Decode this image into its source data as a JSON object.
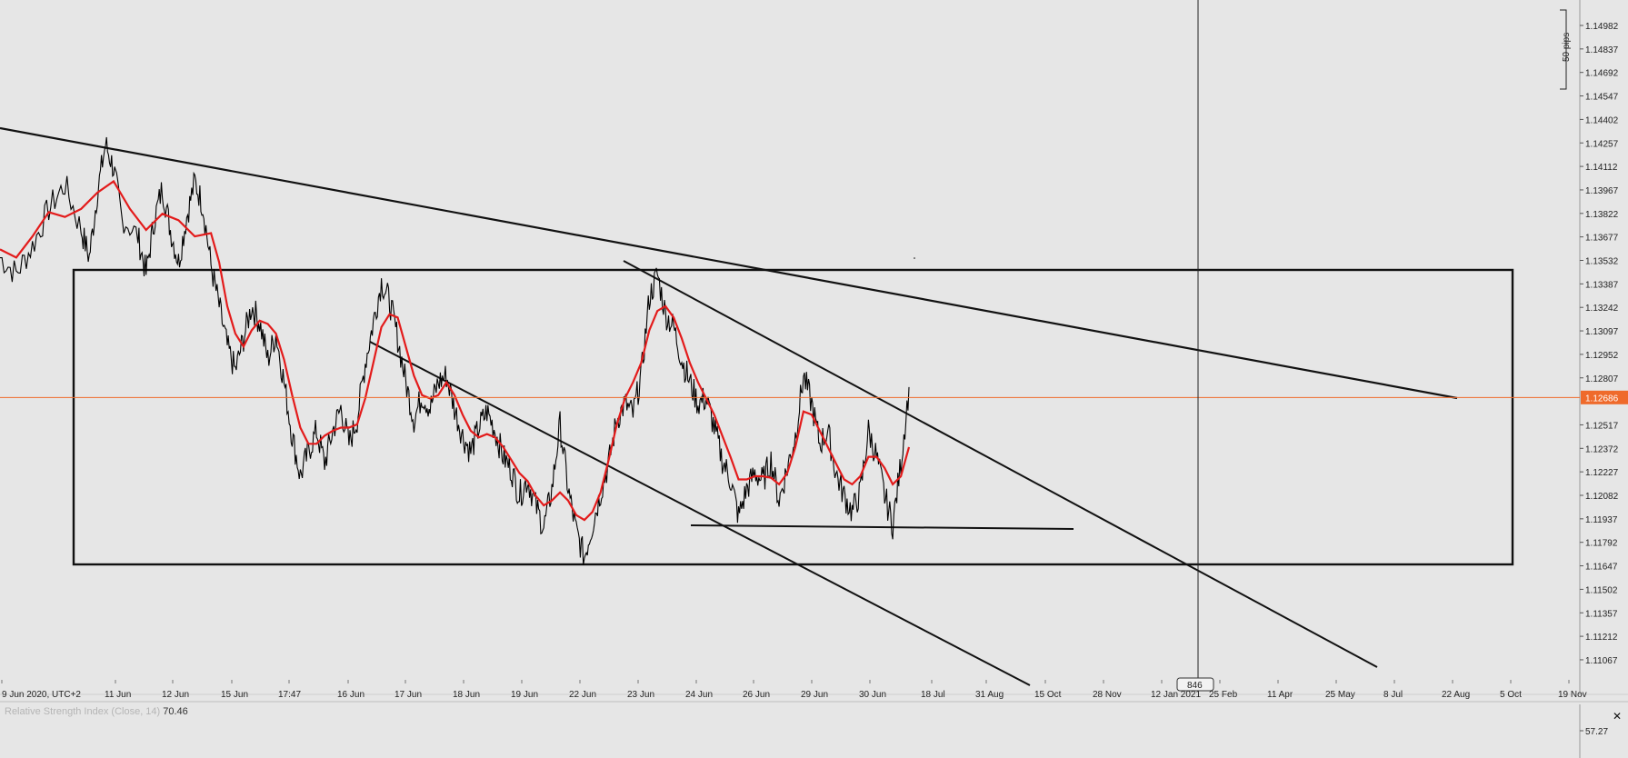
{
  "chart_data": {
    "type": "line",
    "title": "",
    "instrument_price_axis": {
      "ticks": [
        "1.14982",
        "1.14837",
        "1.14692",
        "1.14547",
        "1.14402",
        "1.14257",
        "1.14112",
        "1.13967",
        "1.13822",
        "1.13677",
        "1.13532",
        "1.13387",
        "1.13242",
        "1.13097",
        "1.12952",
        "1.12807",
        "1.12517",
        "1.12372",
        "1.12227",
        "1.12082",
        "1.11937",
        "1.11792",
        "1.11647",
        "1.11502",
        "1.11357",
        "1.11212",
        "1.11067"
      ],
      "ylim": [
        1.1095,
        1.1508
      ]
    },
    "current_price": "1.12686",
    "current_price_color": "#ef6a2b",
    "pips_label": "50 pips",
    "x_ticks": [
      "9 Jun 2020, UTC+2",
      "11 Jun",
      "12 Jun",
      "15 Jun",
      "17:47",
      "16 Jun",
      "17 Jun",
      "18 Jun",
      "19 Jun",
      "22 Jun",
      "23 Jun",
      "24 Jun",
      "26 Jun",
      "29 Jun",
      "30 Jun",
      "18 Jul",
      "31 Aug",
      "15 Oct",
      "28 Nov",
      "12 Jan 2021",
      "25 Feb",
      "11 Apr",
      "25 May",
      "8 Jul",
      "22 Aug",
      "5 Oct",
      "19 Nov"
    ],
    "crosshair_label": "846",
    "series": [
      {
        "kind": "price",
        "color": "#000000",
        "points": [
          [
            0,
            1.1355
          ],
          [
            2,
            1.1345
          ],
          [
            4,
            1.1362
          ],
          [
            6,
            1.1385
          ],
          [
            8,
            1.14
          ],
          [
            10,
            1.1372
          ],
          [
            11,
            1.1355
          ],
          [
            12,
            1.1395
          ],
          [
            13,
            1.1425
          ],
          [
            14,
            1.141
          ],
          [
            15,
            1.138
          ],
          [
            17,
            1.1368
          ],
          [
            18,
            1.1345
          ],
          [
            19,
            1.1378
          ],
          [
            20,
            1.1398
          ],
          [
            21,
            1.1372
          ],
          [
            22,
            1.1352
          ],
          [
            23,
            1.138
          ],
          [
            24,
            1.1402
          ],
          [
            25,
            1.1387
          ],
          [
            26,
            1.135
          ],
          [
            27,
            1.1325
          ],
          [
            28,
            1.13
          ],
          [
            29,
            1.1285
          ],
          [
            30,
            1.1305
          ],
          [
            31,
            1.1325
          ],
          [
            32,
            1.1315
          ],
          [
            33,
            1.1292
          ],
          [
            34,
            1.1308
          ],
          [
            35,
            1.1278
          ],
          [
            36,
            1.1245
          ],
          [
            37,
            1.122
          ],
          [
            38,
            1.1235
          ],
          [
            39,
            1.1248
          ],
          [
            40,
            1.1228
          ],
          [
            41,
            1.1248
          ],
          [
            42,
            1.1262
          ],
          [
            43,
            1.124
          ],
          [
            44,
            1.1255
          ],
          [
            45,
            1.129
          ],
          [
            46,
            1.1315
          ],
          [
            47,
            1.134
          ],
          [
            48,
            1.1328
          ],
          [
            49,
            1.1305
          ],
          [
            50,
            1.1278
          ],
          [
            51,
            1.1255
          ],
          [
            52,
            1.127
          ],
          [
            53,
            1.1262
          ],
          [
            54,
            1.1278
          ],
          [
            55,
            1.1282
          ],
          [
            56,
            1.1262
          ],
          [
            57,
            1.1245
          ],
          [
            58,
            1.1235
          ],
          [
            59,
            1.125
          ],
          [
            60,
            1.126
          ],
          [
            61,
            1.1248
          ],
          [
            62,
            1.1232
          ],
          [
            63,
            1.1224
          ],
          [
            64,
            1.1208
          ],
          [
            65,
            1.1218
          ],
          [
            66,
            1.1202
          ],
          [
            67,
            1.1188
          ],
          [
            68,
            1.1212
          ],
          [
            69,
            1.1252
          ],
          [
            70,
            1.1212
          ],
          [
            71,
            1.1186
          ],
          [
            72,
            1.117
          ],
          [
            73,
            1.119
          ],
          [
            74,
            1.121
          ],
          [
            75,
            1.1228
          ],
          [
            76,
            1.1255
          ],
          [
            77,
            1.1265
          ],
          [
            78,
            1.1258
          ],
          [
            79,
            1.1282
          ],
          [
            80,
            1.133
          ],
          [
            81,
            1.1345
          ],
          [
            82,
            1.132
          ],
          [
            83,
            1.1312
          ],
          [
            84,
            1.1292
          ],
          [
            85,
            1.1278
          ],
          [
            86,
            1.1265
          ],
          [
            87,
            1.1268
          ],
          [
            88,
            1.125
          ],
          [
            89,
            1.123
          ],
          [
            90,
            1.1218
          ],
          [
            91,
            1.1195
          ],
          [
            92,
            1.1212
          ],
          [
            93,
            1.1222
          ],
          [
            94,
            1.1217
          ],
          [
            95,
            1.123
          ],
          [
            96,
            1.1205
          ],
          [
            97,
            1.1225
          ],
          [
            98,
            1.1245
          ],
          [
            99,
            1.1282
          ],
          [
            100,
            1.1265
          ],
          [
            101,
            1.124
          ],
          [
            102,
            1.1248
          ],
          [
            103,
            1.1222
          ],
          [
            104,
            1.1208
          ],
          [
            105,
            1.1198
          ],
          [
            106,
            1.121
          ],
          [
            107,
            1.1248
          ],
          [
            108,
            1.1232
          ],
          [
            109,
            1.1208
          ],
          [
            110,
            1.119
          ],
          [
            111,
            1.1228
          ],
          [
            112,
            1.1275
          ]
        ]
      },
      {
        "kind": "moving_average",
        "color": "#e31b1b",
        "points": [
          [
            0,
            1.136
          ],
          [
            2,
            1.1355
          ],
          [
            4,
            1.1368
          ],
          [
            6,
            1.1383
          ],
          [
            8,
            1.138
          ],
          [
            10,
            1.1385
          ],
          [
            12,
            1.1395
          ],
          [
            14,
            1.1402
          ],
          [
            16,
            1.1385
          ],
          [
            18,
            1.1372
          ],
          [
            20,
            1.1382
          ],
          [
            22,
            1.1378
          ],
          [
            24,
            1.1368
          ],
          [
            26,
            1.137
          ],
          [
            27,
            1.1352
          ],
          [
            28,
            1.1325
          ],
          [
            29,
            1.1308
          ],
          [
            30,
            1.13
          ],
          [
            31,
            1.131
          ],
          [
            32,
            1.1316
          ],
          [
            33,
            1.1314
          ],
          [
            34,
            1.1308
          ],
          [
            35,
            1.1292
          ],
          [
            36,
            1.127
          ],
          [
            37,
            1.125
          ],
          [
            38,
            1.124
          ],
          [
            39,
            1.124
          ],
          [
            40,
            1.1245
          ],
          [
            41,
            1.1248
          ],
          [
            42,
            1.125
          ],
          [
            43,
            1.125
          ],
          [
            44,
            1.1252
          ],
          [
            45,
            1.1268
          ],
          [
            46,
            1.129
          ],
          [
            47,
            1.1312
          ],
          [
            48,
            1.132
          ],
          [
            49,
            1.1318
          ],
          [
            50,
            1.13
          ],
          [
            51,
            1.1282
          ],
          [
            52,
            1.127
          ],
          [
            53,
            1.1268
          ],
          [
            54,
            1.127
          ],
          [
            55,
            1.1278
          ],
          [
            56,
            1.127
          ],
          [
            57,
            1.1258
          ],
          [
            58,
            1.1248
          ],
          [
            59,
            1.1244
          ],
          [
            60,
            1.1246
          ],
          [
            61,
            1.1244
          ],
          [
            62,
            1.1238
          ],
          [
            63,
            1.123
          ],
          [
            64,
            1.1222
          ],
          [
            65,
            1.1217
          ],
          [
            66,
            1.1208
          ],
          [
            67,
            1.1202
          ],
          [
            68,
            1.1205
          ],
          [
            69,
            1.121
          ],
          [
            70,
            1.1205
          ],
          [
            71,
            1.1196
          ],
          [
            72,
            1.1193
          ],
          [
            73,
            1.1198
          ],
          [
            74,
            1.121
          ],
          [
            75,
            1.123
          ],
          [
            76,
            1.1252
          ],
          [
            77,
            1.1268
          ],
          [
            78,
            1.1278
          ],
          [
            79,
            1.129
          ],
          [
            80,
            1.131
          ],
          [
            81,
            1.1322
          ],
          [
            82,
            1.1325
          ],
          [
            83,
            1.1318
          ],
          [
            84,
            1.1305
          ],
          [
            85,
            1.129
          ],
          [
            86,
            1.1278
          ],
          [
            87,
            1.1268
          ],
          [
            88,
            1.1258
          ],
          [
            89,
            1.1245
          ],
          [
            90,
            1.1232
          ],
          [
            91,
            1.1218
          ],
          [
            92,
            1.1218
          ],
          [
            93,
            1.122
          ],
          [
            94,
            1.122
          ],
          [
            95,
            1.1219
          ],
          [
            96,
            1.1215
          ],
          [
            97,
            1.1222
          ],
          [
            98,
            1.1238
          ],
          [
            99,
            1.126
          ],
          [
            100,
            1.1258
          ],
          [
            101,
            1.1248
          ],
          [
            102,
            1.1238
          ],
          [
            103,
            1.1228
          ],
          [
            104,
            1.1218
          ],
          [
            105,
            1.1215
          ],
          [
            106,
            1.122
          ],
          [
            107,
            1.1232
          ],
          [
            108,
            1.1232
          ],
          [
            109,
            1.1225
          ],
          [
            110,
            1.1215
          ],
          [
            111,
            1.122
          ],
          [
            112,
            1.1238
          ]
        ]
      }
    ],
    "drawings": [
      {
        "name": "long-trendline",
        "color": "#000000"
      },
      {
        "name": "range-rectangle",
        "color": "#000000"
      },
      {
        "name": "lower-channel-line",
        "color": "#000000"
      },
      {
        "name": "upper-channel-line",
        "color": "#000000"
      },
      {
        "name": "support-line",
        "color": "#000000"
      }
    ],
    "grid": false
  },
  "rsi_panel": {
    "label": "Relative Strength Index (Close, 14)",
    "value": "70.46",
    "axis_tick": "57.27"
  }
}
